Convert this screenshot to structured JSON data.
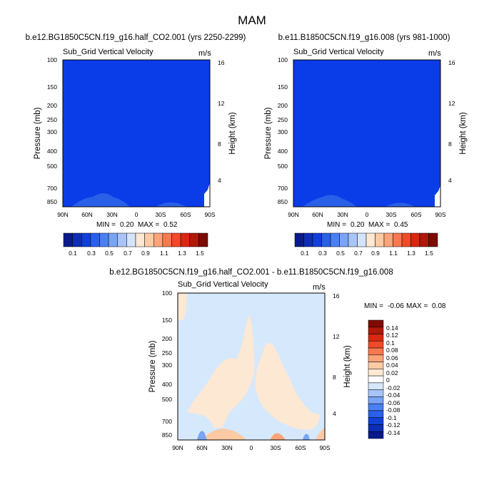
{
  "page": {
    "title": "MAM"
  },
  "colors": {
    "top_fill": "#0a3ce8",
    "top_scale": [
      "#0a1a8a",
      "#0d2eb4",
      "#1040d8",
      "#2a5fe8",
      "#4a80f0",
      "#7aa4f4",
      "#a8c4f8",
      "#d4e4fc",
      "#fde8d4",
      "#fccaa4",
      "#fba47a",
      "#f87850",
      "#f04a28",
      "#d82810",
      "#b01808",
      "#7e0a02"
    ],
    "diff_scale": [
      "#0a1a8a",
      "#0d2eb4",
      "#1040d8",
      "#2a5fe8",
      "#4a80f0",
      "#7aa4f4",
      "#a8c4f8",
      "#d6e8fc",
      "#ffffff",
      "#fde8d4",
      "#fccaa4",
      "#fba47a",
      "#f87850",
      "#f04a28",
      "#d82810",
      "#b01808",
      "#7e0a02"
    ]
  },
  "chart_data": [
    {
      "type": "heatmap",
      "title": "b.e12.BG1850C5CN.f19_g16.half_CO2.001 (yrs 2250-2299)",
      "subtitle": "Sub_Grid Vertical Velocity",
      "units": "m/s",
      "ylabel": "Pressure (mb)",
      "ylabel_right": "Height (km)",
      "x_ticks": [
        "90N",
        "60N",
        "30N",
        "0",
        "30S",
        "60S",
        "90S"
      ],
      "y_ticks": [
        "100",
        "150",
        "200",
        "250",
        "300",
        "400",
        "500",
        "700",
        "850"
      ],
      "y_right_ticks": [
        "16",
        "12",
        "8",
        "4"
      ],
      "stats": {
        "min_label": "MIN =",
        "min": "0.20",
        "max_label": "MAX =",
        "max": "0.52"
      },
      "colorbar_labels": [
        "0.1",
        "0.3",
        "0.5",
        "0.7",
        "0.9",
        "1.1",
        "1.3",
        "1.5"
      ]
    },
    {
      "type": "heatmap",
      "title": "b.e11.B1850C5CN.f19_g16.008 (yrs 981-1000)",
      "subtitle": "Sub_Grid Vertical Velocity",
      "units": "m/s",
      "ylabel": "Pressure (mb)",
      "ylabel_right": "Height (km)",
      "x_ticks": [
        "90N",
        "60N",
        "30N",
        "0",
        "30S",
        "60S",
        "90S"
      ],
      "y_ticks": [
        "100",
        "150",
        "200",
        "250",
        "300",
        "400",
        "500",
        "700",
        "850"
      ],
      "y_right_ticks": [
        "16",
        "12",
        "8",
        "4"
      ],
      "stats": {
        "min_label": "MIN =",
        "min": "0.20",
        "max_label": "MAX =",
        "max": "0.45"
      },
      "colorbar_labels": [
        "0.1",
        "0.3",
        "0.5",
        "0.7",
        "0.9",
        "1.1",
        "1.3",
        "1.5"
      ]
    },
    {
      "type": "heatmap",
      "title": "b.e12.BG1850C5CN.f19_g16.half_CO2.001 - b.e11.B1850C5CN.f19_g16.008",
      "subtitle": "Sub_Grid Vertical Velocity",
      "units": "m/s",
      "ylabel": "Pressure (mb)",
      "ylabel_right": "Height (km)",
      "x_ticks": [
        "90N",
        "60N",
        "30N",
        "0",
        "30S",
        "60S",
        "90S"
      ],
      "y_ticks": [
        "100",
        "150",
        "200",
        "250",
        "300",
        "400",
        "500",
        "700",
        "850"
      ],
      "y_right_ticks": [
        "16",
        "12",
        "8",
        "4"
      ],
      "stats": {
        "min_label": "MIN =",
        "min": "-0.06",
        "max_label": "MAX =",
        "max": "0.08"
      },
      "colorbar_labels": [
        "0.14",
        "0.12",
        "0.1",
        "0.08",
        "0.06",
        "0.04",
        "0.02",
        "0",
        "-0.02",
        "-0.04",
        "-0.06",
        "-0.08",
        "-0.1",
        "-0.12",
        "-0.14"
      ]
    }
  ]
}
